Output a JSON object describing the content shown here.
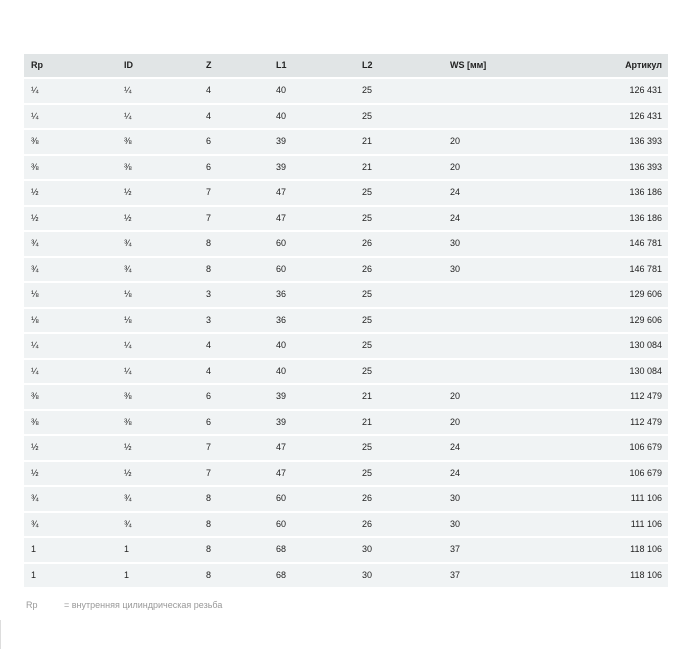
{
  "table": {
    "headers": [
      "Rp",
      "ID",
      "Z",
      "L1",
      "L2",
      "WS [мм]",
      "Артикул"
    ],
    "rows": [
      [
        "¼",
        "¼",
        "4",
        "40",
        "25",
        "",
        "126 431"
      ],
      [
        "¼",
        "¼",
        "4",
        "40",
        "25",
        "",
        "126 431"
      ],
      [
        "⅜",
        "⅜",
        "6",
        "39",
        "21",
        "20",
        "136 393"
      ],
      [
        "⅜",
        "⅜",
        "6",
        "39",
        "21",
        "20",
        "136 393"
      ],
      [
        "½",
        "½",
        "7",
        "47",
        "25",
        "24",
        "136 186"
      ],
      [
        "½",
        "½",
        "7",
        "47",
        "25",
        "24",
        "136 186"
      ],
      [
        "¾",
        "¾",
        "8",
        "60",
        "26",
        "30",
        "146 781"
      ],
      [
        "¾",
        "¾",
        "8",
        "60",
        "26",
        "30",
        "146 781"
      ],
      [
        "⅛",
        "⅛",
        "3",
        "36",
        "25",
        "",
        "129 606"
      ],
      [
        "⅛",
        "⅛",
        "3",
        "36",
        "25",
        "",
        "129 606"
      ],
      [
        "¼",
        "¼",
        "4",
        "40",
        "25",
        "",
        "130 084"
      ],
      [
        "¼",
        "¼",
        "4",
        "40",
        "25",
        "",
        "130 084"
      ],
      [
        "⅜",
        "⅜",
        "6",
        "39",
        "21",
        "20",
        "112 479"
      ],
      [
        "⅜",
        "⅜",
        "6",
        "39",
        "21",
        "20",
        "112 479"
      ],
      [
        "½",
        "½",
        "7",
        "47",
        "25",
        "24",
        "106 679"
      ],
      [
        "½",
        "½",
        "7",
        "47",
        "25",
        "24",
        "106 679"
      ],
      [
        "¾",
        "¾",
        "8",
        "60",
        "26",
        "30",
        "111 106"
      ],
      [
        "¾",
        "¾",
        "8",
        "60",
        "26",
        "30",
        "111 106"
      ],
      [
        "1",
        "1",
        "8",
        "68",
        "30",
        "37",
        "118 106"
      ],
      [
        "1",
        "1",
        "8",
        "68",
        "30",
        "37",
        "118 106"
      ]
    ]
  },
  "footnote": {
    "term": "Rp",
    "definition": "=  внутренняя цилиндрическая резьба"
  }
}
